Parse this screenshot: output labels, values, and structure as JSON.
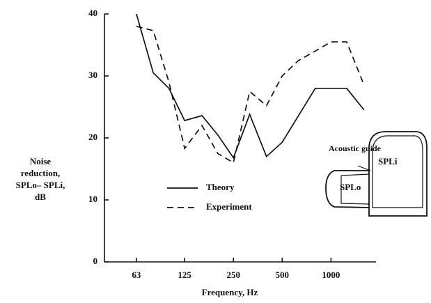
{
  "chart_data": {
    "type": "line",
    "x_label": "Frequency, Hz",
    "y_label": [
      "Noise",
      "reduction,",
      "SPLo– SPLi,",
      "dB"
    ],
    "log_x": true,
    "xlim": [
      40,
      1700
    ],
    "xticks": [
      63,
      125,
      250,
      500,
      1000
    ],
    "ylim": [
      0,
      40
    ],
    "yticks": [
      0,
      10,
      20,
      30,
      40
    ],
    "series": [
      {
        "name": "Theory",
        "color": "#111111",
        "dash": "solid",
        "x": [
          63,
          80,
          100,
          125,
          160,
          200,
          250,
          315,
          400,
          500,
          800,
          1000,
          1250,
          1600
        ],
        "values": [
          40,
          30.5,
          28,
          22.8,
          23.6,
          20.5,
          16.8,
          23.8,
          17,
          19.3,
          28,
          28,
          28,
          24.5
        ]
      },
      {
        "name": "Experiment",
        "color": "#111111",
        "dash": "dashed",
        "x": [
          63,
          80,
          100,
          125,
          160,
          200,
          250,
          315,
          400,
          500,
          630,
          800,
          1000,
          1250,
          1600
        ],
        "values": [
          38,
          37.3,
          29,
          18.3,
          22,
          17.5,
          16,
          27.5,
          25.2,
          30,
          32.5,
          34,
          35.5,
          35.5,
          28.5
        ]
      }
    ],
    "annotations": [
      "Acoustic guide",
      "SPLi",
      "SPLo"
    ]
  }
}
